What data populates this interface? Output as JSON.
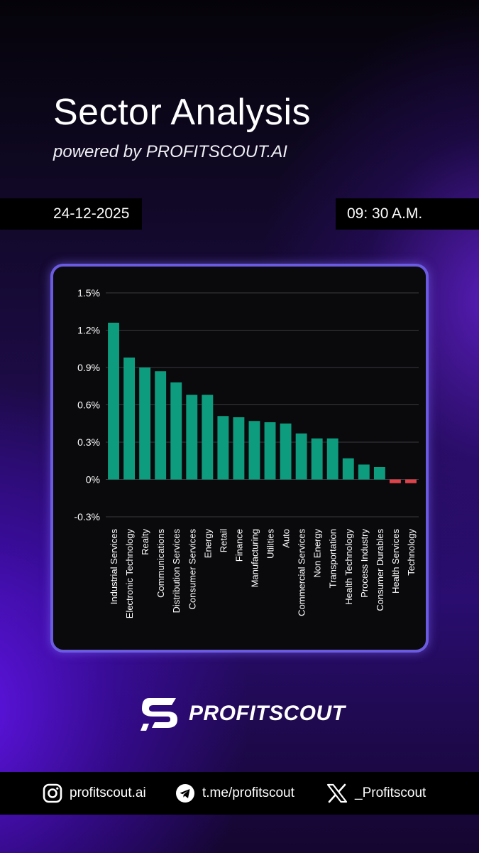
{
  "header": {
    "title": "Sector Analysis",
    "subtitle": "powered by PROFITSCOUT.AI",
    "date": "24-12-2025",
    "time": "09: 30 A.M."
  },
  "colors": {
    "positive": "#0e9c7f",
    "negative": "#e0424a",
    "card_border": "#6a5be0"
  },
  "chart_data": {
    "type": "bar",
    "title": "",
    "xlabel": "",
    "ylabel": "",
    "ylim": [
      -0.3,
      1.5
    ],
    "yticks": [
      "1.5%",
      "1.2%",
      "0.9%",
      "0.6%",
      "0.3%",
      "0%",
      "-0.3%"
    ],
    "ytick_values": [
      1.5,
      1.2,
      0.9,
      0.6,
      0.3,
      0,
      -0.3
    ],
    "grid": true,
    "categories": [
      "Industrial Services",
      "Electronic Technology",
      "Realty",
      "Communications",
      "Distribution Services",
      "Consumer Services",
      "Energy",
      "Retail",
      "Finance",
      "Manufacturing",
      "Utilities",
      "Auto",
      "Commercial Services",
      "Non Energy",
      "Transportation",
      "Health Technology",
      "Process Industry",
      "Consumer Durables",
      "Health Services",
      "Technology"
    ],
    "values": [
      1.26,
      0.98,
      0.9,
      0.87,
      0.78,
      0.68,
      0.68,
      0.51,
      0.5,
      0.47,
      0.46,
      0.45,
      0.37,
      0.33,
      0.33,
      0.17,
      0.12,
      0.1,
      -0.03,
      -0.03
    ]
  },
  "brand": {
    "logo": "profitscout-s-logo",
    "name": "PROFITSCOUT"
  },
  "footer": {
    "instagram": {
      "icon": "instagram-icon",
      "label": "profitscout.ai"
    },
    "telegram": {
      "icon": "telegram-icon",
      "label": "t.me/profitscout"
    },
    "x": {
      "icon": "x-icon",
      "label": "_Profitscout"
    }
  }
}
